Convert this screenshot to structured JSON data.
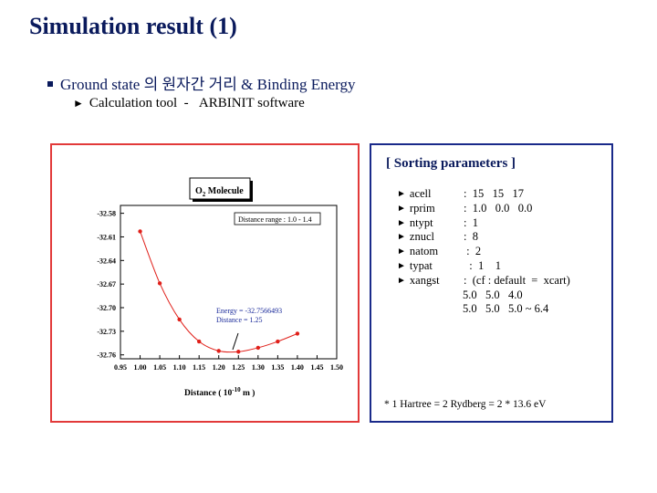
{
  "slide": {
    "title": "Simulation result (1)",
    "bullet_main": "Ground state 의 원자간 거리 & Binding Energy",
    "bullet_sub_prefix": "Calculation tool",
    "bullet_sub_dash": "-",
    "bullet_sub_tool": "ARBINIT software"
  },
  "plot": {
    "legend_title_main": "O",
    "legend_title_sub": "2",
    "legend_title_rest": " Molecule",
    "range_label": "Distance range : 1.0 - 1.4",
    "energy_label": "Energy  = -32.7566493",
    "distance_label": "Distance = 1.25",
    "xlabel_main": "Distance ( 10",
    "xlabel_exp": "-10",
    "xlabel_end": " m )"
  },
  "chart_data": {
    "type": "scatter",
    "title": "O2 Molecule",
    "xlabel": "Distance ( 10^-10 m )",
    "ylabel": "",
    "xlim": [
      0.95,
      1.5
    ],
    "ylim": [
      -32.765,
      -32.57
    ],
    "x_ticks": [
      "0.95",
      "1.00",
      "1.05",
      "1.10",
      "1.15",
      "1.20",
      "1.25",
      "1.30",
      "1.35",
      "1.40",
      "1.45",
      "1.50"
    ],
    "y_ticks": [
      "-32.58",
      "-32.61",
      "-32.64",
      "-32.67",
      "-32.70",
      "-32.73",
      "-32.76"
    ],
    "series": [
      {
        "x": [
          1.0,
          1.05,
          1.1,
          1.15,
          1.2,
          1.25,
          1.3,
          1.35,
          1.4
        ],
        "y": [
          -32.603,
          -32.669,
          -32.715,
          -32.743,
          -32.755,
          -32.756,
          -32.751,
          -32.743,
          -32.733
        ],
        "color": "#e0201a"
      }
    ],
    "grid": false
  },
  "params": {
    "title": "[ Sorting parameters ]",
    "items": [
      {
        "key": "acell",
        "value": " :  15   15   17"
      },
      {
        "key": "rprim",
        "value": " :  1.0   0.0   0.0"
      },
      {
        "key": "ntypt",
        "value": " :  1"
      },
      {
        "key": "znucl",
        "value": " :  8"
      },
      {
        "key": "natom",
        "value": "  :  2"
      },
      {
        "key": "typat",
        "value": "   :  1    1"
      },
      {
        "key": "xangst",
        "value": " :  (cf : default  =  xcart)"
      }
    ],
    "extra_lines": [
      "5.0   5.0   4.0",
      "5.0   5.0   5.0 ~ 6.4"
    ],
    "note": "* 1 Hartree  =  2 Rydberg  =  2 * 13.6 eV"
  }
}
